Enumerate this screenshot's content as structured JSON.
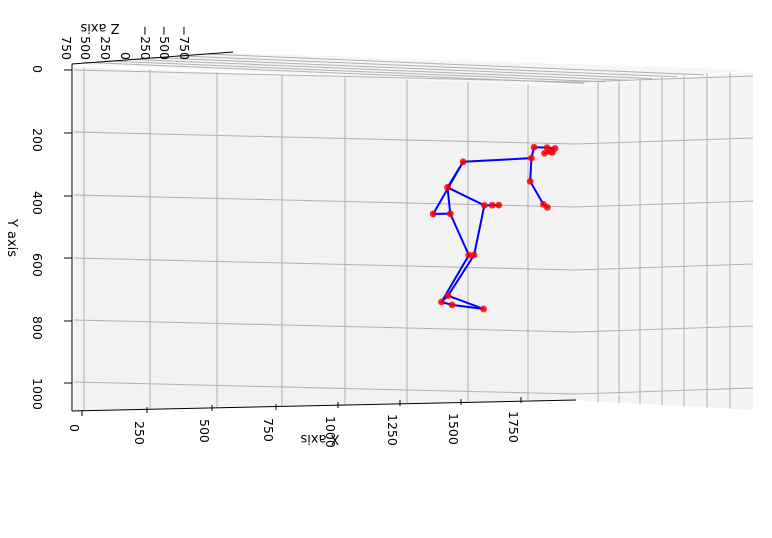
{
  "chart_data": {
    "type": "scatter",
    "projection": "3d",
    "x_axis": {
      "label": "X axis",
      "ticks": [
        "0",
        "250",
        "500",
        "750",
        "1000",
        "1250",
        "1500",
        "1750"
      ]
    },
    "y_axis": {
      "label": "Y axis",
      "ticks": [
        "0",
        "200",
        "400",
        "600",
        "800",
        "1000"
      ]
    },
    "z_axis": {
      "label": "Z axis",
      "ticks": [
        "750",
        "500",
        "250",
        "0",
        "−250",
        "−500",
        "−750"
      ]
    },
    "grid": true,
    "colors": {
      "joints": "#ff0000",
      "bones": "#0000ff",
      "grid": "#b0b0b0",
      "panes": "#f2f2f2"
    },
    "joints": [
      {
        "x": 1750,
        "y": 285
      },
      {
        "x": 1800,
        "y": 287
      },
      {
        "x": 1830,
        "y": 290
      },
      {
        "x": 1810,
        "y": 300
      },
      {
        "x": 1790,
        "y": 305
      },
      {
        "x": 1820,
        "y": 303
      },
      {
        "x": 1740,
        "y": 320
      },
      {
        "x": 1480,
        "y": 328
      },
      {
        "x": 1420,
        "y": 410
      },
      {
        "x": 1560,
        "y": 470
      },
      {
        "x": 1590,
        "y": 470
      },
      {
        "x": 1615,
        "y": 470
      },
      {
        "x": 1735,
        "y": 395
      },
      {
        "x": 1785,
        "y": 470
      },
      {
        "x": 1800,
        "y": 480
      },
      {
        "x": 1365,
        "y": 495
      },
      {
        "x": 1430,
        "y": 495
      },
      {
        "x": 1500,
        "y": 630
      },
      {
        "x": 1520,
        "y": 630
      },
      {
        "x": 1395,
        "y": 780
      },
      {
        "x": 1420,
        "y": 760
      },
      {
        "x": 1435,
        "y": 790
      },
      {
        "x": 1555,
        "y": 805
      }
    ],
    "bones": [
      [
        0,
        1
      ],
      [
        1,
        2
      ],
      [
        2,
        3
      ],
      [
        3,
        4
      ],
      [
        0,
        6
      ],
      [
        6,
        7
      ],
      [
        7,
        8
      ],
      [
        8,
        9
      ],
      [
        9,
        10
      ],
      [
        10,
        11
      ],
      [
        6,
        12
      ],
      [
        12,
        13
      ],
      [
        13,
        14
      ],
      [
        7,
        15
      ],
      [
        15,
        16
      ],
      [
        8,
        16
      ],
      [
        16,
        17
      ],
      [
        9,
        18
      ],
      [
        17,
        19
      ],
      [
        18,
        20
      ],
      [
        19,
        21
      ],
      [
        20,
        22
      ],
      [
        21,
        22
      ],
      [
        19,
        20
      ]
    ]
  }
}
